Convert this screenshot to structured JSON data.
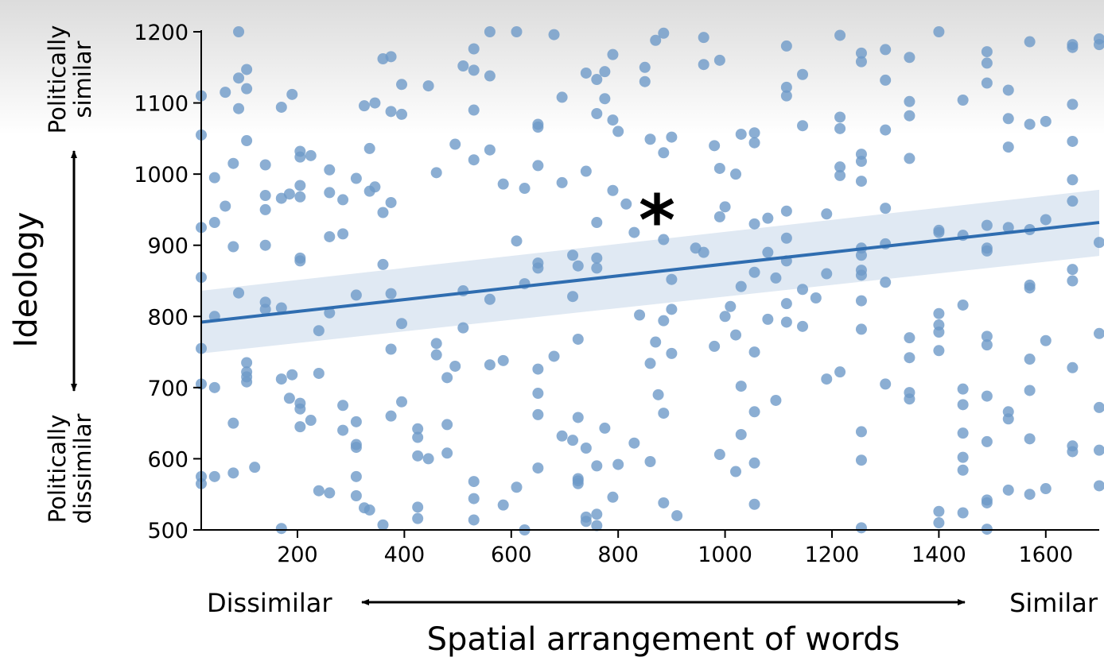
{
  "chart_data": {
    "type": "scatter",
    "xlabel": "Spatial arrangement of words",
    "ylabel": "Ideology",
    "x_low_label": "Dissimilar",
    "x_high_label": "Similar",
    "y_high_label": "Politically similar",
    "y_low_label": "Politically dissimilar",
    "annotation": "*",
    "xlim": [
      20,
      1700
    ],
    "ylim": [
      500,
      1200
    ],
    "xticks": [
      200,
      400,
      600,
      800,
      1000,
      1200,
      1400,
      1600
    ],
    "yticks": [
      500,
      600,
      700,
      800,
      900,
      1000,
      1100,
      1200
    ],
    "grid": false,
    "color": "#2f6db0",
    "point_color": "#6e9ac8",
    "regression": {
      "x": [
        20,
        1700
      ],
      "y": [
        792,
        932
      ],
      "ci_lower": [
        748,
        885
      ],
      "ci_upper": [
        836,
        978
      ]
    },
    "points": [
      [
        20,
        1110
      ],
      [
        20,
        1055
      ],
      [
        20,
        925
      ],
      [
        20,
        855
      ],
      [
        20,
        755
      ],
      [
        20,
        705
      ],
      [
        20,
        575
      ],
      [
        20,
        565
      ],
      [
        45,
        995
      ],
      [
        45,
        932
      ],
      [
        45,
        800
      ],
      [
        45,
        700
      ],
      [
        45,
        575
      ],
      [
        65,
        1115
      ],
      [
        65,
        955
      ],
      [
        80,
        1015
      ],
      [
        80,
        898
      ],
      [
        80,
        650
      ],
      [
        80,
        580
      ],
      [
        90,
        1200
      ],
      [
        90,
        1135
      ],
      [
        90,
        1092
      ],
      [
        90,
        833
      ],
      [
        105,
        1147
      ],
      [
        105,
        1120
      ],
      [
        105,
        1047
      ],
      [
        105,
        735
      ],
      [
        105,
        722
      ],
      [
        105,
        715
      ],
      [
        105,
        708
      ],
      [
        120,
        588
      ],
      [
        140,
        1013
      ],
      [
        140,
        970
      ],
      [
        140,
        950
      ],
      [
        140,
        900
      ],
      [
        140,
        820
      ],
      [
        140,
        810
      ],
      [
        170,
        1094
      ],
      [
        170,
        966
      ],
      [
        170,
        812
      ],
      [
        170,
        712
      ],
      [
        170,
        502
      ],
      [
        185,
        972
      ],
      [
        185,
        685
      ],
      [
        190,
        1112
      ],
      [
        190,
        718
      ],
      [
        205,
        1032
      ],
      [
        205,
        1024
      ],
      [
        205,
        984
      ],
      [
        205,
        968
      ],
      [
        205,
        882
      ],
      [
        205,
        878
      ],
      [
        205,
        678
      ],
      [
        205,
        670
      ],
      [
        205,
        645
      ],
      [
        225,
        1026
      ],
      [
        225,
        654
      ],
      [
        240,
        780
      ],
      [
        240,
        720
      ],
      [
        240,
        555
      ],
      [
        260,
        1006
      ],
      [
        260,
        974
      ],
      [
        260,
        912
      ],
      [
        260,
        805
      ],
      [
        260,
        552
      ],
      [
        285,
        964
      ],
      [
        285,
        916
      ],
      [
        285,
        675
      ],
      [
        285,
        640
      ],
      [
        310,
        994
      ],
      [
        310,
        830
      ],
      [
        310,
        652
      ],
      [
        310,
        620
      ],
      [
        310,
        616
      ],
      [
        310,
        575
      ],
      [
        310,
        548
      ],
      [
        325,
        1096
      ],
      [
        325,
        531
      ],
      [
        335,
        1036
      ],
      [
        335,
        976
      ],
      [
        335,
        528
      ],
      [
        345,
        1100
      ],
      [
        345,
        982
      ],
      [
        360,
        1162
      ],
      [
        360,
        946
      ],
      [
        360,
        873
      ],
      [
        360,
        507
      ],
      [
        375,
        1165
      ],
      [
        375,
        1088
      ],
      [
        375,
        960
      ],
      [
        375,
        832
      ],
      [
        375,
        754
      ],
      [
        375,
        660
      ],
      [
        395,
        1126
      ],
      [
        395,
        1084
      ],
      [
        395,
        790
      ],
      [
        395,
        680
      ],
      [
        425,
        642
      ],
      [
        425,
        630
      ],
      [
        425,
        604
      ],
      [
        425,
        532
      ],
      [
        425,
        516
      ],
      [
        445,
        1124
      ],
      [
        445,
        600
      ],
      [
        460,
        1002
      ],
      [
        460,
        762
      ],
      [
        460,
        746
      ],
      [
        480,
        714
      ],
      [
        480,
        608
      ],
      [
        480,
        648
      ],
      [
        495,
        1042
      ],
      [
        495,
        730
      ],
      [
        510,
        1152
      ],
      [
        510,
        836
      ],
      [
        510,
        784
      ],
      [
        530,
        1176
      ],
      [
        530,
        1146
      ],
      [
        530,
        1090
      ],
      [
        530,
        1020
      ],
      [
        530,
        568
      ],
      [
        530,
        544
      ],
      [
        530,
        514
      ],
      [
        560,
        1200
      ],
      [
        560,
        1138
      ],
      [
        560,
        1034
      ],
      [
        560,
        824
      ],
      [
        560,
        732
      ],
      [
        585,
        986
      ],
      [
        585,
        738
      ],
      [
        585,
        535
      ],
      [
        610,
        1200
      ],
      [
        610,
        906
      ],
      [
        610,
        560
      ],
      [
        625,
        980
      ],
      [
        625,
        846
      ],
      [
        625,
        500
      ],
      [
        650,
        1070
      ],
      [
        650,
        1066
      ],
      [
        650,
        1012
      ],
      [
        650,
        875
      ],
      [
        650,
        868
      ],
      [
        650,
        726
      ],
      [
        650,
        692
      ],
      [
        650,
        662
      ],
      [
        650,
        587
      ],
      [
        680,
        1196
      ],
      [
        680,
        744
      ],
      [
        695,
        1108
      ],
      [
        695,
        988
      ],
      [
        695,
        632
      ],
      [
        715,
        886
      ],
      [
        715,
        828
      ],
      [
        715,
        626
      ],
      [
        725,
        871
      ],
      [
        725,
        768
      ],
      [
        725,
        658
      ],
      [
        725,
        572
      ],
      [
        725,
        569
      ],
      [
        725,
        565
      ],
      [
        740,
        1142
      ],
      [
        740,
        1004
      ],
      [
        740,
        615
      ],
      [
        740,
        518
      ],
      [
        740,
        512
      ],
      [
        760,
        1133
      ],
      [
        760,
        1085
      ],
      [
        760,
        932
      ],
      [
        760,
        882
      ],
      [
        760,
        868
      ],
      [
        760,
        590
      ],
      [
        760,
        522
      ],
      [
        760,
        506
      ],
      [
        775,
        1144
      ],
      [
        775,
        1106
      ],
      [
        775,
        643
      ],
      [
        790,
        1168
      ],
      [
        790,
        1076
      ],
      [
        790,
        977
      ],
      [
        790,
        546
      ],
      [
        800,
        1060
      ],
      [
        800,
        592
      ],
      [
        815,
        958
      ],
      [
        830,
        918
      ],
      [
        830,
        622
      ],
      [
        840,
        802
      ],
      [
        850,
        1150
      ],
      [
        850,
        1130
      ],
      [
        860,
        1049
      ],
      [
        860,
        734
      ],
      [
        860,
        596
      ],
      [
        870,
        1188
      ],
      [
        870,
        764
      ],
      [
        875,
        690
      ],
      [
        885,
        1198
      ],
      [
        885,
        1030
      ],
      [
        885,
        908
      ],
      [
        885,
        794
      ],
      [
        885,
        664
      ],
      [
        885,
        538
      ],
      [
        900,
        1052
      ],
      [
        900,
        852
      ],
      [
        900,
        810
      ],
      [
        900,
        748
      ],
      [
        910,
        520
      ],
      [
        945,
        896
      ],
      [
        960,
        1192
      ],
      [
        960,
        1154
      ],
      [
        960,
        890
      ],
      [
        980,
        1040
      ],
      [
        980,
        758
      ],
      [
        990,
        1160
      ],
      [
        990,
        1008
      ],
      [
        990,
        940
      ],
      [
        990,
        606
      ],
      [
        1000,
        954
      ],
      [
        1000,
        800
      ],
      [
        1010,
        814
      ],
      [
        1020,
        1000
      ],
      [
        1020,
        774
      ],
      [
        1020,
        582
      ],
      [
        1030,
        1056
      ],
      [
        1030,
        842
      ],
      [
        1030,
        702
      ],
      [
        1030,
        634
      ],
      [
        1055,
        1058
      ],
      [
        1055,
        1044
      ],
      [
        1055,
        930
      ],
      [
        1055,
        862
      ],
      [
        1055,
        750
      ],
      [
        1055,
        666
      ],
      [
        1055,
        594
      ],
      [
        1055,
        536
      ],
      [
        1080,
        938
      ],
      [
        1080,
        890
      ],
      [
        1080,
        796
      ],
      [
        1095,
        854
      ],
      [
        1095,
        682
      ],
      [
        1115,
        1180
      ],
      [
        1115,
        1122
      ],
      [
        1115,
        1110
      ],
      [
        1115,
        948
      ],
      [
        1115,
        910
      ],
      [
        1115,
        878
      ],
      [
        1115,
        818
      ],
      [
        1115,
        792
      ],
      [
        1145,
        1140
      ],
      [
        1145,
        1068
      ],
      [
        1145,
        838
      ],
      [
        1145,
        786
      ],
      [
        1170,
        826
      ],
      [
        1190,
        944
      ],
      [
        1190,
        860
      ],
      [
        1190,
        712
      ],
      [
        1215,
        1195
      ],
      [
        1215,
        1080
      ],
      [
        1215,
        1064
      ],
      [
        1215,
        1010
      ],
      [
        1215,
        998
      ],
      [
        1215,
        722
      ],
      [
        1255,
        1170
      ],
      [
        1255,
        1158
      ],
      [
        1255,
        1028
      ],
      [
        1255,
        1018
      ],
      [
        1255,
        990
      ],
      [
        1255,
        896
      ],
      [
        1255,
        886
      ],
      [
        1255,
        865
      ],
      [
        1255,
        858
      ],
      [
        1255,
        822
      ],
      [
        1255,
        782
      ],
      [
        1255,
        638
      ],
      [
        1255,
        598
      ],
      [
        1255,
        503
      ],
      [
        1300,
        1175
      ],
      [
        1300,
        1132
      ],
      [
        1300,
        1062
      ],
      [
        1300,
        952
      ],
      [
        1300,
        902
      ],
      [
        1300,
        848
      ],
      [
        1300,
        705
      ],
      [
        1345,
        1164
      ],
      [
        1345,
        1102
      ],
      [
        1345,
        1082
      ],
      [
        1345,
        1022
      ],
      [
        1345,
        770
      ],
      [
        1345,
        742
      ],
      [
        1345,
        693
      ],
      [
        1345,
        684
      ],
      [
        1400,
        1200
      ],
      [
        1400,
        921
      ],
      [
        1400,
        918
      ],
      [
        1400,
        804
      ],
      [
        1400,
        788
      ],
      [
        1400,
        778
      ],
      [
        1400,
        752
      ],
      [
        1400,
        526
      ],
      [
        1400,
        510
      ],
      [
        1445,
        1104
      ],
      [
        1445,
        914
      ],
      [
        1445,
        816
      ],
      [
        1445,
        698
      ],
      [
        1445,
        676
      ],
      [
        1445,
        636
      ],
      [
        1445,
        602
      ],
      [
        1445,
        584
      ],
      [
        1445,
        524
      ],
      [
        1490,
        1172
      ],
      [
        1490,
        1156
      ],
      [
        1490,
        1128
      ],
      [
        1490,
        928
      ],
      [
        1490,
        896
      ],
      [
        1490,
        892
      ],
      [
        1490,
        772
      ],
      [
        1490,
        760
      ],
      [
        1490,
        688
      ],
      [
        1490,
        624
      ],
      [
        1490,
        542
      ],
      [
        1490,
        538
      ],
      [
        1490,
        501
      ],
      [
        1530,
        1118
      ],
      [
        1530,
        1078
      ],
      [
        1530,
        1038
      ],
      [
        1530,
        925
      ],
      [
        1530,
        666
      ],
      [
        1530,
        656
      ],
      [
        1530,
        556
      ],
      [
        1570,
        1186
      ],
      [
        1570,
        1070
      ],
      [
        1570,
        922
      ],
      [
        1570,
        844
      ],
      [
        1570,
        840
      ],
      [
        1570,
        740
      ],
      [
        1570,
        696
      ],
      [
        1570,
        628
      ],
      [
        1570,
        550
      ],
      [
        1600,
        1074
      ],
      [
        1600,
        936
      ],
      [
        1600,
        766
      ],
      [
        1600,
        558
      ],
      [
        1650,
        1182
      ],
      [
        1650,
        1178
      ],
      [
        1650,
        1098
      ],
      [
        1650,
        1046
      ],
      [
        1650,
        992
      ],
      [
        1650,
        962
      ],
      [
        1650,
        866
      ],
      [
        1650,
        850
      ],
      [
        1650,
        728
      ],
      [
        1650,
        618
      ],
      [
        1650,
        610
      ],
      [
        1700,
        1190
      ],
      [
        1700,
        1182
      ],
      [
        1700,
        904
      ],
      [
        1700,
        776
      ],
      [
        1700,
        672
      ],
      [
        1700,
        612
      ],
      [
        1700,
        562
      ]
    ]
  }
}
